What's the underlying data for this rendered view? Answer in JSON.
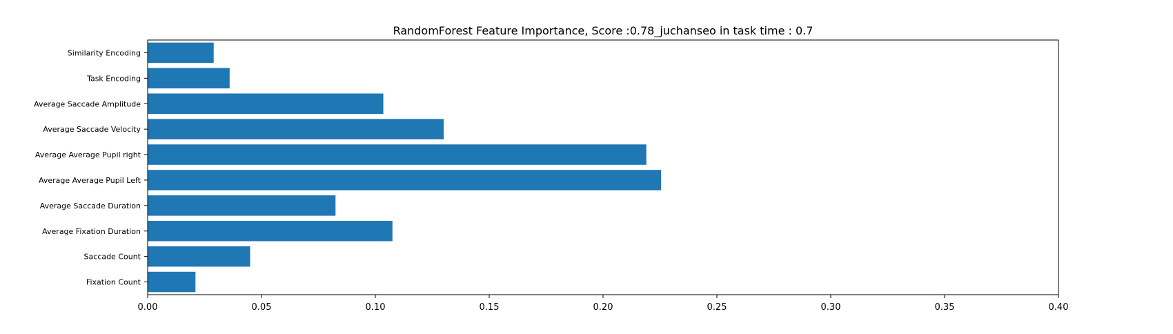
{
  "chart_data": {
    "type": "bar",
    "orientation": "horizontal",
    "title": "RandomForest Feature Importance, Score :0.78_juchanseo in task time : 0.7",
    "xlabel": "",
    "ylabel": "",
    "categories": [
      "Fixation Count",
      "Saccade Count",
      "Average Fixation Duration",
      "Average Saccade Duration",
      "Average Average Pupil Left",
      "Average Average Pupil right",
      "Average Saccade Velocity",
      "Average Saccade Amplitude",
      "Task Encoding",
      "Similarity Encoding"
    ],
    "values": [
      0.021,
      0.045,
      0.1075,
      0.0825,
      0.2255,
      0.219,
      0.13,
      0.1035,
      0.036,
      0.029
    ],
    "xlim": [
      0,
      0.4
    ],
    "xticks": [
      "0.00",
      "0.05",
      "0.10",
      "0.15",
      "0.20",
      "0.25",
      "0.30",
      "0.35",
      "0.40"
    ],
    "grid": false,
    "legend": "none",
    "bar_color": "#1f77b4"
  }
}
